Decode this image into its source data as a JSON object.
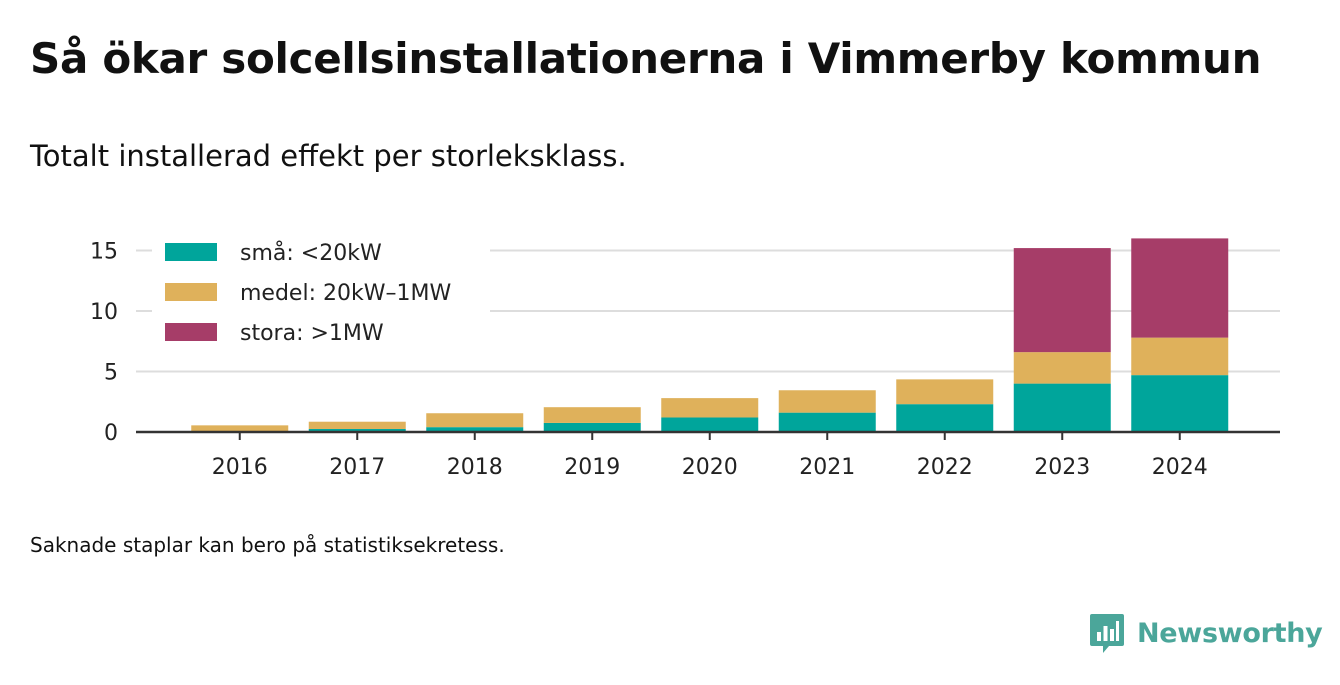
{
  "title": "Så ökar solcellsinstallationerna i Vimmerby kommun",
  "subtitle": "Totalt installerad effekt per storleksklass.",
  "footnote": "Saknade staplar kan bero på statistiksekretess.",
  "brand": {
    "name": "Newsworthy",
    "color": "#4ba69a"
  },
  "chart_data": {
    "type": "bar",
    "stacked": true,
    "categories": [
      "2016",
      "2017",
      "2018",
      "2019",
      "2020",
      "2021",
      "2022",
      "2023",
      "2024"
    ],
    "series": [
      {
        "name": "små: <20kW",
        "color": "#00a59b",
        "values": [
          0.05,
          0.25,
          0.4,
          0.75,
          1.2,
          1.6,
          2.3,
          4.0,
          4.7
        ]
      },
      {
        "name": "medel: 20kW–1MW",
        "color": "#dfb15b",
        "values": [
          0.5,
          0.6,
          1.15,
          1.3,
          1.6,
          1.85,
          2.05,
          2.6,
          3.1
        ]
      },
      {
        "name": "stora: >1MW",
        "color": "#a63d68",
        "values": [
          0,
          0,
          0,
          0,
          0,
          0,
          0,
          8.6,
          8.2
        ]
      }
    ],
    "yticks": [
      0,
      5,
      10,
      15
    ],
    "ylim": [
      0,
      16
    ],
    "grid": true,
    "legend_position": "top-left",
    "xlabel": "",
    "ylabel": ""
  }
}
